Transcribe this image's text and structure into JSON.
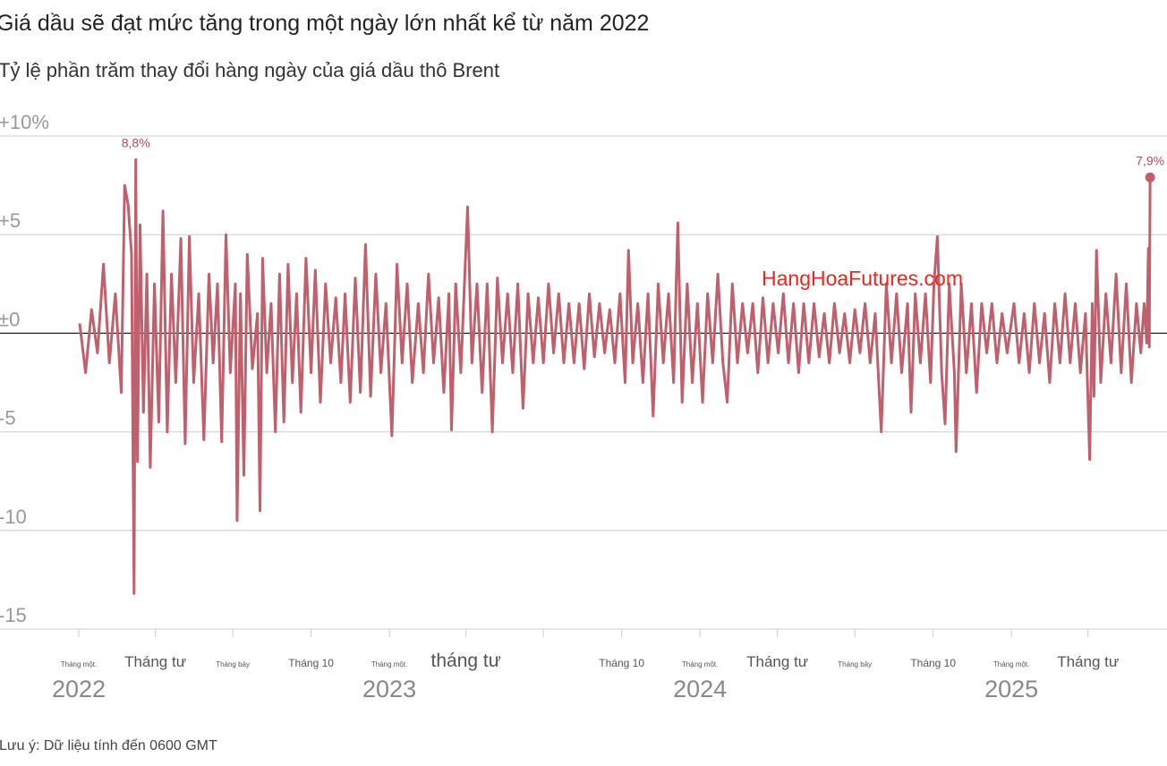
{
  "header": {
    "title": "Giá dầu sẽ đạt mức tăng trong một ngày lớn nhất kể từ năm 2022",
    "subtitle": "Tỷ lệ phần trăm thay đổi hàng ngày của giá dầu thô Brent"
  },
  "footer": {
    "note": "Lưu ý: Dữ liệu tính đến 0600 GMT"
  },
  "watermark": {
    "text": "HangHoaFutures.com"
  },
  "colors": {
    "line": "#c0606c",
    "grid": "#cccccc",
    "zero": "#222222",
    "annotation": "#b84a55"
  },
  "chart_data": {
    "type": "line",
    "title": "Giá dầu sẽ đạt mức tăng trong một ngày lớn nhất kể từ năm 2022",
    "subtitle": "Tỷ lệ phần trăm thay đổi hàng ngày của giá dầu thô Brent",
    "xlabel": "",
    "ylabel": "",
    "ylim": [
      -15,
      10
    ],
    "xlim": [
      "2022-01-01",
      "2025-06-16"
    ],
    "grid": true,
    "y_ticks": [
      {
        "value": 10,
        "label": "+10%"
      },
      {
        "value": 5,
        "label": "+5"
      },
      {
        "value": 0,
        "label": "±0"
      },
      {
        "value": -5,
        "label": "-5"
      },
      {
        "value": -10,
        "label": "-10"
      },
      {
        "value": -15,
        "label": "-15"
      }
    ],
    "x_month_labels": [
      {
        "date": "2022-01-01",
        "label": "Tháng một.",
        "size": "small"
      },
      {
        "date": "2022-04-01",
        "label": "Tháng tư",
        "size": "large"
      },
      {
        "date": "2022-07-01",
        "label": "Tháng bảy",
        "size": "small"
      },
      {
        "date": "2022-10-01",
        "label": "Tháng 10",
        "size": "medium"
      },
      {
        "date": "2023-01-01",
        "label": "Tháng một.",
        "size": "small"
      },
      {
        "date": "2023-04-01",
        "label": "tháng tư",
        "size": "xlarge"
      },
      {
        "date": "2023-10-01",
        "label": "Tháng 10",
        "size": "medium"
      },
      {
        "date": "2024-01-01",
        "label": "Tháng một.",
        "size": "small"
      },
      {
        "date": "2024-04-01",
        "label": "Tháng tư",
        "size": "large"
      },
      {
        "date": "2024-07-01",
        "label": "Tháng bảy",
        "size": "small"
      },
      {
        "date": "2024-10-01",
        "label": "Tháng 10",
        "size": "medium"
      },
      {
        "date": "2025-01-01",
        "label": "Tháng một.",
        "size": "small"
      },
      {
        "date": "2025-04-01",
        "label": "Tháng tư",
        "size": "large"
      }
    ],
    "x_year_labels": [
      {
        "date": "2022-01-01",
        "label": "2022"
      },
      {
        "date": "2023-01-01",
        "label": "2023"
      },
      {
        "date": "2024-01-01",
        "label": "2024"
      },
      {
        "date": "2025-01-01",
        "label": "2025"
      }
    ],
    "annotations": [
      {
        "date": "2022-03-09",
        "value": 8.8,
        "label": "8,8%"
      },
      {
        "date": "2025-06-13",
        "value": 7.9,
        "label": "7,9%"
      }
    ],
    "series": [
      {
        "points": [
          [
            "2022-01-02",
            0.5
          ],
          [
            "2022-01-09",
            -2.0
          ],
          [
            "2022-01-16",
            1.2
          ],
          [
            "2022-01-23",
            -1.0
          ],
          [
            "2022-01-30",
            3.5
          ],
          [
            "2022-02-06",
            -1.5
          ],
          [
            "2022-02-13",
            2.0
          ],
          [
            "2022-02-20",
            -3.0
          ],
          [
            "2022-02-24",
            7.5
          ],
          [
            "2022-02-28",
            6.5
          ],
          [
            "2022-03-04",
            4.0
          ],
          [
            "2022-03-07",
            -13.2
          ],
          [
            "2022-03-09",
            8.8
          ],
          [
            "2022-03-11",
            -6.5
          ],
          [
            "2022-03-14",
            5.5
          ],
          [
            "2022-03-18",
            -4.0
          ],
          [
            "2022-03-22",
            3.0
          ],
          [
            "2022-03-26",
            -6.8
          ],
          [
            "2022-03-31",
            2.5
          ],
          [
            "2022-04-05",
            -4.5
          ],
          [
            "2022-04-10",
            6.2
          ],
          [
            "2022-04-15",
            -5.0
          ],
          [
            "2022-04-20",
            3.0
          ],
          [
            "2022-04-25",
            -2.5
          ],
          [
            "2022-05-01",
            4.8
          ],
          [
            "2022-05-06",
            -5.6
          ],
          [
            "2022-05-11",
            4.9
          ],
          [
            "2022-05-16",
            -2.5
          ],
          [
            "2022-05-22",
            2.0
          ],
          [
            "2022-05-28",
            -5.4
          ],
          [
            "2022-06-03",
            3.0
          ],
          [
            "2022-06-08",
            -1.5
          ],
          [
            "2022-06-13",
            2.5
          ],
          [
            "2022-06-18",
            -5.5
          ],
          [
            "2022-06-23",
            5.0
          ],
          [
            "2022-06-28",
            -2.0
          ],
          [
            "2022-07-04",
            2.5
          ],
          [
            "2022-07-06",
            -9.5
          ],
          [
            "2022-07-10",
            2.0
          ],
          [
            "2022-07-14",
            -7.2
          ],
          [
            "2022-07-18",
            4.0
          ],
          [
            "2022-07-24",
            -1.8
          ],
          [
            "2022-07-30",
            1.0
          ],
          [
            "2022-08-02",
            -9.0
          ],
          [
            "2022-08-05",
            3.8
          ],
          [
            "2022-08-10",
            -2.0
          ],
          [
            "2022-08-15",
            1.5
          ],
          [
            "2022-08-20",
            -5.0
          ],
          [
            "2022-08-25",
            3.0
          ],
          [
            "2022-08-30",
            -4.5
          ],
          [
            "2022-09-04",
            3.5
          ],
          [
            "2022-09-09",
            -2.5
          ],
          [
            "2022-09-14",
            2.0
          ],
          [
            "2022-09-19",
            -4.0
          ],
          [
            "2022-09-25",
            3.8
          ],
          [
            "2022-10-01",
            -2.0
          ],
          [
            "2022-10-06",
            3.2
          ],
          [
            "2022-10-12",
            -3.5
          ],
          [
            "2022-10-18",
            2.5
          ],
          [
            "2022-10-24",
            -1.5
          ],
          [
            "2022-10-30",
            1.8
          ],
          [
            "2022-11-05",
            -2.5
          ],
          [
            "2022-11-10",
            2.0
          ],
          [
            "2022-11-16",
            -3.5
          ],
          [
            "2022-11-22",
            2.8
          ],
          [
            "2022-11-28",
            -3.0
          ],
          [
            "2022-12-04",
            4.5
          ],
          [
            "2022-12-10",
            -3.2
          ],
          [
            "2022-12-16",
            3.0
          ],
          [
            "2022-12-22",
            -2.0
          ],
          [
            "2022-12-28",
            1.5
          ],
          [
            "2023-01-04",
            -5.2
          ],
          [
            "2023-01-10",
            3.5
          ],
          [
            "2023-01-16",
            -1.5
          ],
          [
            "2023-01-22",
            2.5
          ],
          [
            "2023-01-28",
            -2.5
          ],
          [
            "2023-02-04",
            1.5
          ],
          [
            "2023-02-10",
            -2.0
          ],
          [
            "2023-02-16",
            3.0
          ],
          [
            "2023-02-22",
            -1.5
          ],
          [
            "2023-02-28",
            1.8
          ],
          [
            "2023-03-06",
            -3.0
          ],
          [
            "2023-03-12",
            2.0
          ],
          [
            "2023-03-15",
            -4.9
          ],
          [
            "2023-03-20",
            2.5
          ],
          [
            "2023-03-26",
            -2.0
          ],
          [
            "2023-04-03",
            6.4
          ],
          [
            "2023-04-08",
            -1.5
          ],
          [
            "2023-04-14",
            2.5
          ],
          [
            "2023-04-20",
            -3.0
          ],
          [
            "2023-04-26",
            2.5
          ],
          [
            "2023-05-02",
            -5.0
          ],
          [
            "2023-05-08",
            2.8
          ],
          [
            "2023-05-14",
            -1.5
          ],
          [
            "2023-05-20",
            2.0
          ],
          [
            "2023-05-26",
            -2.0
          ],
          [
            "2023-06-01",
            2.5
          ],
          [
            "2023-06-07",
            -3.8
          ],
          [
            "2023-06-13",
            2.0
          ],
          [
            "2023-06-19",
            -1.5
          ],
          [
            "2023-06-25",
            1.8
          ],
          [
            "2023-07-01",
            -1.5
          ],
          [
            "2023-07-07",
            2.5
          ],
          [
            "2023-07-13",
            -1.0
          ],
          [
            "2023-07-19",
            2.0
          ],
          [
            "2023-07-25",
            -1.5
          ],
          [
            "2023-07-31",
            1.5
          ],
          [
            "2023-08-06",
            -1.5
          ],
          [
            "2023-08-12",
            1.5
          ],
          [
            "2023-08-18",
            -1.8
          ],
          [
            "2023-08-24",
            2.0
          ],
          [
            "2023-08-30",
            -1.2
          ],
          [
            "2023-09-05",
            1.5
          ],
          [
            "2023-09-11",
            -1.0
          ],
          [
            "2023-09-17",
            1.2
          ],
          [
            "2023-09-23",
            -1.5
          ],
          [
            "2023-09-29",
            2.0
          ],
          [
            "2023-10-05",
            -2.5
          ],
          [
            "2023-10-09",
            4.2
          ],
          [
            "2023-10-14",
            -1.5
          ],
          [
            "2023-10-20",
            1.5
          ],
          [
            "2023-10-26",
            -2.5
          ],
          [
            "2023-11-01",
            2.0
          ],
          [
            "2023-11-07",
            -4.2
          ],
          [
            "2023-11-13",
            2.5
          ],
          [
            "2023-11-19",
            -1.5
          ],
          [
            "2023-11-25",
            2.0
          ],
          [
            "2023-12-01",
            -2.5
          ],
          [
            "2023-12-06",
            5.6
          ],
          [
            "2023-12-11",
            -3.5
          ],
          [
            "2023-12-17",
            2.5
          ],
          [
            "2023-12-23",
            -2.5
          ],
          [
            "2023-12-29",
            1.5
          ],
          [
            "2024-01-04",
            -3.5
          ],
          [
            "2024-01-10",
            2.0
          ],
          [
            "2024-01-16",
            -1.5
          ],
          [
            "2024-01-22",
            3.0
          ],
          [
            "2024-01-28",
            -1.5
          ],
          [
            "2024-02-02",
            -3.5
          ],
          [
            "2024-02-08",
            2.5
          ],
          [
            "2024-02-14",
            -1.5
          ],
          [
            "2024-02-20",
            1.5
          ],
          [
            "2024-02-26",
            -1.0
          ],
          [
            "2024-03-03",
            1.5
          ],
          [
            "2024-03-09",
            -2.0
          ],
          [
            "2024-03-15",
            1.8
          ],
          [
            "2024-03-21",
            -1.5
          ],
          [
            "2024-03-27",
            1.5
          ],
          [
            "2024-04-02",
            -1.0
          ],
          [
            "2024-04-08",
            2.0
          ],
          [
            "2024-04-14",
            -1.5
          ],
          [
            "2024-04-20",
            1.5
          ],
          [
            "2024-04-26",
            -2.0
          ],
          [
            "2024-05-02",
            1.5
          ],
          [
            "2024-05-08",
            -1.5
          ],
          [
            "2024-05-14",
            1.5
          ],
          [
            "2024-05-20",
            -1.2
          ],
          [
            "2024-05-26",
            1.0
          ],
          [
            "2024-06-01",
            -1.5
          ],
          [
            "2024-06-07",
            1.5
          ],
          [
            "2024-06-13",
            -1.0
          ],
          [
            "2024-06-19",
            1.0
          ],
          [
            "2024-06-25",
            -1.5
          ],
          [
            "2024-07-01",
            1.2
          ],
          [
            "2024-07-07",
            -1.0
          ],
          [
            "2024-07-13",
            1.5
          ],
          [
            "2024-07-19",
            -1.5
          ],
          [
            "2024-07-25",
            1.0
          ],
          [
            "2024-08-01",
            -5.0
          ],
          [
            "2024-08-07",
            2.5
          ],
          [
            "2024-08-13",
            -1.5
          ],
          [
            "2024-08-19",
            2.0
          ],
          [
            "2024-08-25",
            -2.0
          ],
          [
            "2024-09-01",
            1.5
          ],
          [
            "2024-09-05",
            -4.0
          ],
          [
            "2024-09-10",
            2.0
          ],
          [
            "2024-09-16",
            -1.5
          ],
          [
            "2024-09-22",
            2.0
          ],
          [
            "2024-09-28",
            -2.5
          ],
          [
            "2024-10-02",
            2.5
          ],
          [
            "2024-10-06",
            4.9
          ],
          [
            "2024-10-11",
            -2.0
          ],
          [
            "2024-10-15",
            -4.6
          ],
          [
            "2024-10-20",
            2.5
          ],
          [
            "2024-10-26",
            -2.0
          ],
          [
            "2024-10-28",
            -6.0
          ],
          [
            "2024-11-03",
            2.5
          ],
          [
            "2024-11-09",
            -2.0
          ],
          [
            "2024-11-15",
            1.5
          ],
          [
            "2024-11-21",
            -3.0
          ],
          [
            "2024-11-27",
            1.5
          ],
          [
            "2024-12-03",
            -1.0
          ],
          [
            "2024-12-09",
            1.5
          ],
          [
            "2024-12-15",
            -1.5
          ],
          [
            "2024-12-21",
            1.0
          ],
          [
            "2024-12-27",
            -1.0
          ],
          [
            "2025-01-04",
            1.5
          ],
          [
            "2025-01-10",
            -1.5
          ],
          [
            "2025-01-16",
            1.0
          ],
          [
            "2025-01-22",
            -2.0
          ],
          [
            "2025-01-28",
            1.5
          ],
          [
            "2025-02-03",
            -1.5
          ],
          [
            "2025-02-09",
            1.0
          ],
          [
            "2025-02-15",
            -2.5
          ],
          [
            "2025-02-21",
            1.5
          ],
          [
            "2025-02-27",
            -1.5
          ],
          [
            "2025-03-05",
            2.0
          ],
          [
            "2025-03-11",
            -1.5
          ],
          [
            "2025-03-17",
            1.5
          ],
          [
            "2025-03-23",
            -2.0
          ],
          [
            "2025-03-29",
            1.0
          ],
          [
            "2025-04-03",
            -6.4
          ],
          [
            "2025-04-06",
            1.5
          ],
          [
            "2025-04-08",
            -3.2
          ],
          [
            "2025-04-11",
            4.2
          ],
          [
            "2025-04-16",
            -2.5
          ],
          [
            "2025-04-22",
            2.0
          ],
          [
            "2025-04-28",
            -1.5
          ],
          [
            "2025-05-04",
            3.0
          ],
          [
            "2025-05-10",
            -2.0
          ],
          [
            "2025-05-16",
            2.5
          ],
          [
            "2025-05-22",
            -2.5
          ],
          [
            "2025-05-28",
            1.5
          ],
          [
            "2025-06-02",
            -1.0
          ],
          [
            "2025-06-06",
            1.5
          ],
          [
            "2025-06-09",
            -0.5
          ],
          [
            "2025-06-11",
            4.3
          ],
          [
            "2025-06-12",
            -0.7
          ],
          [
            "2025-06-13",
            7.9
          ]
        ]
      }
    ]
  }
}
